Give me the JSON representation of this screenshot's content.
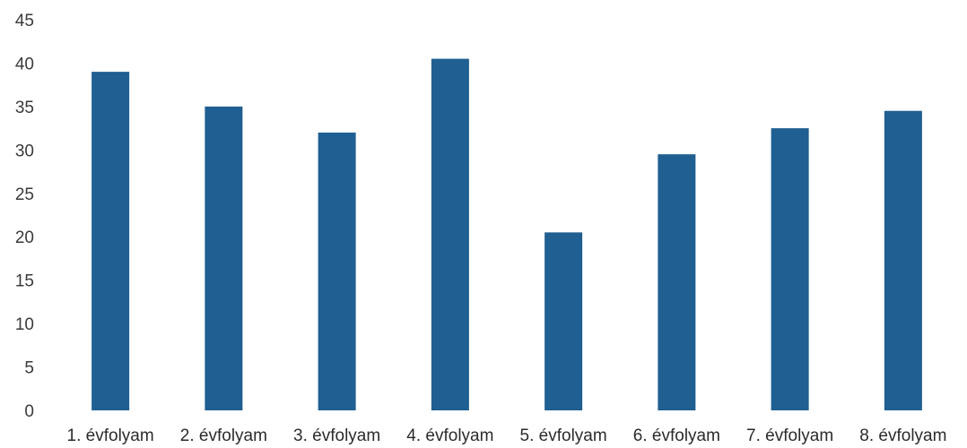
{
  "chart_data": {
    "type": "bar",
    "title": "",
    "xlabel": "",
    "ylabel": "",
    "categories": [
      "1. évfolyam",
      "2. évfolyam",
      "3. évfolyam",
      "4. évfolyam",
      "5. évfolyam",
      "6. évfolyam",
      "7. évfolyam",
      "8. évfolyam"
    ],
    "values": [
      39,
      35,
      32,
      40.5,
      20.5,
      29.5,
      32.5,
      34.5
    ],
    "ylim": [
      0,
      45
    ],
    "yticks": [
      0,
      5,
      10,
      15,
      20,
      25,
      30,
      35,
      40,
      45
    ],
    "grid": false,
    "legend": "none",
    "bar_color": "#1f5f91"
  }
}
